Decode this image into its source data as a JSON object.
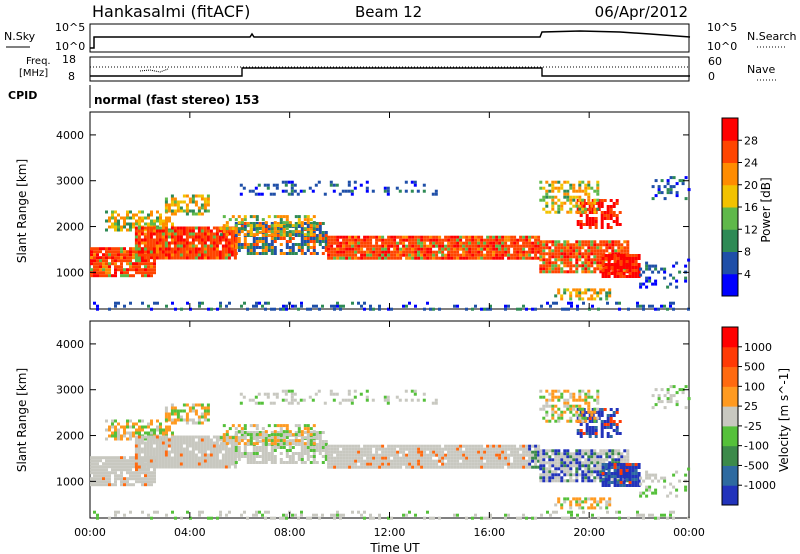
{
  "header": {
    "station": "Hankasalmi (fitACF)",
    "beam": "Beam 12",
    "date": "06/Apr/2012"
  },
  "top_panels": {
    "nsky_label": "N.Sky",
    "nsky_ticks": [
      "10^5",
      "10^0"
    ],
    "nsearch_label": "N.Search",
    "nsearch_ticks": [
      "10^5",
      "10^0"
    ],
    "freq_label_1": "Freq.",
    "freq_label_2": "[MHz]",
    "freq_ticks": [
      "18",
      "8"
    ],
    "nave_label": "Nave",
    "nave_ticks": [
      "60",
      "0"
    ],
    "cpid_label": "CPID",
    "cpid_text": "normal (fast stereo) 153"
  },
  "chart_data": [
    {
      "type": "heatmap",
      "title": "",
      "xlabel": "",
      "ylabel": "Slant Range [km]",
      "x_ticks": [
        "00:00",
        "04:00",
        "08:00",
        "12:00",
        "16:00",
        "20:00",
        "00:00"
      ],
      "y_ticks": [
        1000,
        2000,
        3000,
        4000
      ],
      "ylim": [
        200,
        4500
      ],
      "colorbar": {
        "label": "Power [dB]",
        "ticks": [
          4,
          8,
          12,
          16,
          20,
          24,
          28
        ],
        "colors": [
          "#0000ff",
          "#1f4fa8",
          "#2e8a55",
          "#5fb84a",
          "#f2c200",
          "#ff8c00",
          "#ff4500",
          "#ff0000"
        ]
      }
    },
    {
      "type": "heatmap",
      "title": "",
      "xlabel": "Time UT",
      "ylabel": "Slant Range [km]",
      "x_ticks": [
        "00:00",
        "04:00",
        "08:00",
        "12:00",
        "16:00",
        "20:00",
        "00:00"
      ],
      "y_ticks": [
        1000,
        2000,
        3000,
        4000
      ],
      "ylim": [
        200,
        4500
      ],
      "colorbar": {
        "label": "Velocity [m s^-1]",
        "ticks": [
          1000,
          500,
          100,
          25,
          -25,
          -100,
          -500,
          -1000
        ],
        "colors": [
          "#2233bb",
          "#2e6aa0",
          "#3c8a4a",
          "#55c03a",
          "#c8c8c0",
          "#ff9a20",
          "#ff6a10",
          "#ff3a05",
          "#ff0000"
        ]
      }
    }
  ]
}
